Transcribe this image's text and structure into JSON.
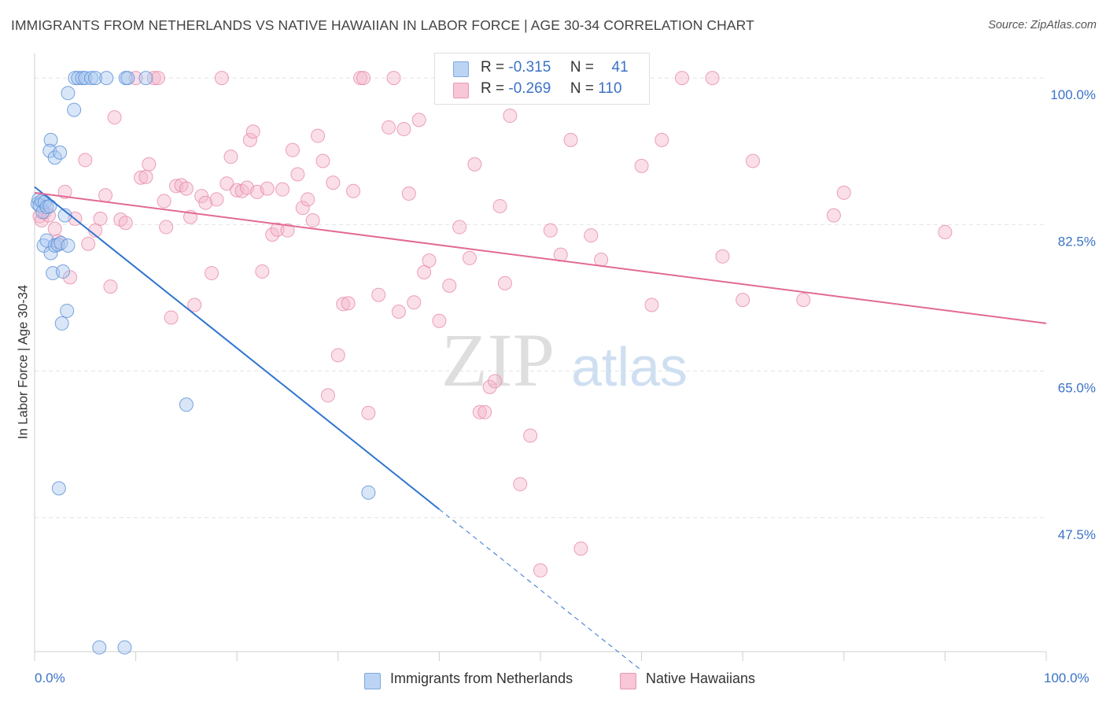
{
  "header": {
    "title": "IMMIGRANTS FROM NETHERLANDS VS NATIVE HAWAIIAN IN LABOR FORCE | AGE 30-34 CORRELATION CHART",
    "source": "Source: ZipAtlas.com"
  },
  "watermark": {
    "zip": "ZIP",
    "atlas": "atlas"
  },
  "legend_top": {
    "rows": [
      {
        "r_label": "R =",
        "r_value": "-0.315",
        "n_label": "N =",
        "n_value": "41"
      },
      {
        "r_label": "R =",
        "r_value": "-0.269",
        "n_label": "N =",
        "n_value": "110"
      }
    ]
  },
  "legend_bottom": {
    "items": [
      {
        "label": "Immigrants from Netherlands"
      },
      {
        "label": "Native Hawaiians"
      }
    ]
  },
  "colors": {
    "blue_fill": "#a9c8ef",
    "blue_stroke": "#5b8fd6",
    "blue_line": "#2f74d0",
    "pink_fill": "#f5b8cb",
    "pink_stroke": "#e88aa8",
    "pink_line": "#e26a94",
    "tick_label": "#3b73c6",
    "grid": "#e4e4e4"
  },
  "chart_data": {
    "type": "scatter",
    "title": "IMMIGRANTS FROM NETHERLANDS VS NATIVE HAWAIIAN IN LABOR FORCE | AGE 30-34 CORRELATION CHART",
    "xlabel": "",
    "ylabel": "In Labor Force | Age 30-34",
    "xlim": [
      0,
      100
    ],
    "ylim": [
      31.5,
      101.8
    ],
    "x_tick_labels": [
      "0.0%",
      "100.0%"
    ],
    "y_ticks": [
      47.5,
      65.0,
      82.5,
      100.0
    ],
    "y_tick_labels": [
      "47.5%",
      "65.0%",
      "82.5%",
      "100.0%"
    ],
    "grid": true,
    "legend_position": "top-center",
    "series": [
      {
        "name": "Immigrants from Netherlands",
        "points": [
          [
            0.3,
            85.0
          ],
          [
            0.4,
            85.5
          ],
          [
            0.5,
            84.8
          ],
          [
            0.7,
            85.3
          ],
          [
            0.8,
            84.0
          ],
          [
            1.0,
            85.2
          ],
          [
            1.2,
            84.6
          ],
          [
            1.5,
            84.7
          ],
          [
            0.9,
            80.0
          ],
          [
            1.2,
            80.6
          ],
          [
            1.6,
            79.1
          ],
          [
            1.8,
            76.7
          ],
          [
            2.0,
            80.0
          ],
          [
            2.3,
            80.1
          ],
          [
            2.6,
            80.3
          ],
          [
            2.8,
            76.9
          ],
          [
            3.3,
            80.0
          ],
          [
            1.6,
            92.6
          ],
          [
            1.5,
            91.3
          ],
          [
            2.0,
            90.5
          ],
          [
            2.5,
            91.1
          ],
          [
            3.0,
            83.6
          ],
          [
            3.2,
            72.2
          ],
          [
            2.7,
            70.7
          ],
          [
            4.0,
            100.0
          ],
          [
            4.3,
            100.0
          ],
          [
            4.7,
            100.0
          ],
          [
            5.0,
            100.0
          ],
          [
            5.6,
            100.0
          ],
          [
            6.0,
            100.0
          ],
          [
            7.1,
            100.0
          ],
          [
            3.3,
            98.2
          ],
          [
            3.9,
            96.2
          ],
          [
            9.0,
            100.0
          ],
          [
            9.2,
            100.0
          ],
          [
            11.0,
            100.0
          ],
          [
            15.0,
            61.0
          ],
          [
            2.4,
            51.0
          ],
          [
            33.0,
            50.5
          ],
          [
            6.4,
            32.0
          ],
          [
            8.9,
            32.0
          ]
        ]
      },
      {
        "name": "Native Hawaiians",
        "points": [
          [
            0.5,
            83.5
          ],
          [
            0.7,
            83.0
          ],
          [
            1.0,
            84.0
          ],
          [
            1.4,
            83.6
          ],
          [
            2.0,
            82.0
          ],
          [
            2.3,
            80.5
          ],
          [
            3.0,
            86.4
          ],
          [
            3.5,
            76.2
          ],
          [
            4.0,
            83.2
          ],
          [
            5.0,
            90.2
          ],
          [
            5.3,
            80.2
          ],
          [
            6.0,
            81.8
          ],
          [
            6.5,
            83.2
          ],
          [
            7.0,
            86.0
          ],
          [
            7.5,
            75.1
          ],
          [
            7.9,
            95.3
          ],
          [
            8.5,
            83.1
          ],
          [
            9.0,
            82.7
          ],
          [
            10.0,
            100.0
          ],
          [
            10.5,
            88.1
          ],
          [
            11.0,
            88.2
          ],
          [
            11.3,
            89.7
          ],
          [
            11.8,
            100.0
          ],
          [
            12.2,
            100.0
          ],
          [
            12.8,
            85.3
          ],
          [
            13.0,
            82.2
          ],
          [
            13.5,
            71.4
          ],
          [
            14.0,
            87.1
          ],
          [
            14.5,
            87.2
          ],
          [
            15.0,
            86.8
          ],
          [
            15.4,
            83.4
          ],
          [
            15.8,
            72.9
          ],
          [
            16.5,
            85.9
          ],
          [
            16.9,
            85.1
          ],
          [
            17.5,
            76.7
          ],
          [
            18.0,
            85.5
          ],
          [
            18.5,
            100.0
          ],
          [
            19.0,
            87.4
          ],
          [
            19.4,
            90.6
          ],
          [
            20.0,
            86.6
          ],
          [
            20.5,
            86.5
          ],
          [
            21.0,
            86.9
          ],
          [
            21.3,
            92.6
          ],
          [
            21.6,
            93.6
          ],
          [
            22.0,
            86.4
          ],
          [
            22.5,
            76.9
          ],
          [
            23.0,
            86.8
          ],
          [
            23.5,
            81.3
          ],
          [
            24.0,
            81.9
          ],
          [
            24.5,
            86.7
          ],
          [
            25.0,
            81.8
          ],
          [
            25.5,
            91.4
          ],
          [
            26.0,
            88.5
          ],
          [
            26.5,
            84.5
          ],
          [
            27.0,
            85.5
          ],
          [
            27.5,
            83.0
          ],
          [
            28.0,
            93.1
          ],
          [
            28.5,
            90.1
          ],
          [
            29.0,
            62.1
          ],
          [
            29.5,
            87.5
          ],
          [
            30.0,
            66.9
          ],
          [
            30.5,
            73.0
          ],
          [
            31.0,
            73.1
          ],
          [
            31.5,
            86.5
          ],
          [
            32.2,
            100.0
          ],
          [
            32.5,
            100.0
          ],
          [
            33.0,
            60.0
          ],
          [
            34.0,
            74.1
          ],
          [
            35.0,
            94.1
          ],
          [
            35.5,
            100.0
          ],
          [
            36.0,
            72.1
          ],
          [
            36.5,
            93.9
          ],
          [
            37.0,
            86.2
          ],
          [
            37.5,
            73.2
          ],
          [
            38.0,
            95.0
          ],
          [
            38.5,
            76.8
          ],
          [
            39.0,
            78.2
          ],
          [
            40.0,
            71.0
          ],
          [
            41.0,
            75.2
          ],
          [
            42.0,
            82.2
          ],
          [
            43.0,
            78.5
          ],
          [
            43.5,
            89.7
          ],
          [
            44.0,
            60.1
          ],
          [
            44.5,
            60.1
          ],
          [
            45.0,
            63.1
          ],
          [
            45.5,
            63.8
          ],
          [
            46.0,
            84.7
          ],
          [
            46.5,
            75.5
          ],
          [
            47.0,
            95.5
          ],
          [
            48.0,
            51.5
          ],
          [
            49.0,
            57.3
          ],
          [
            50.0,
            41.2
          ],
          [
            51.0,
            81.8
          ],
          [
            52.0,
            78.9
          ],
          [
            53.0,
            92.6
          ],
          [
            54.0,
            43.8
          ],
          [
            55.0,
            81.2
          ],
          [
            56.0,
            78.3
          ],
          [
            60.0,
            89.5
          ],
          [
            61.0,
            72.9
          ],
          [
            62.0,
            92.6
          ],
          [
            64.0,
            100.0
          ],
          [
            67.0,
            100.0
          ],
          [
            68.0,
            78.7
          ],
          [
            70.0,
            73.5
          ],
          [
            71.0,
            90.1
          ],
          [
            76.0,
            73.5
          ],
          [
            79.0,
            83.6
          ],
          [
            80.0,
            86.3
          ],
          [
            90.0,
            81.6
          ]
        ]
      }
    ],
    "trendlines": [
      {
        "series": "Immigrants from Netherlands",
        "x": [
          0,
          40
        ],
        "y": [
          87.0,
          48.5
        ],
        "dashed_extension_to_x": 60
      },
      {
        "series": "Native Hawaiians",
        "x": [
          0,
          100
        ],
        "y": [
          86.3,
          70.7
        ]
      }
    ]
  }
}
